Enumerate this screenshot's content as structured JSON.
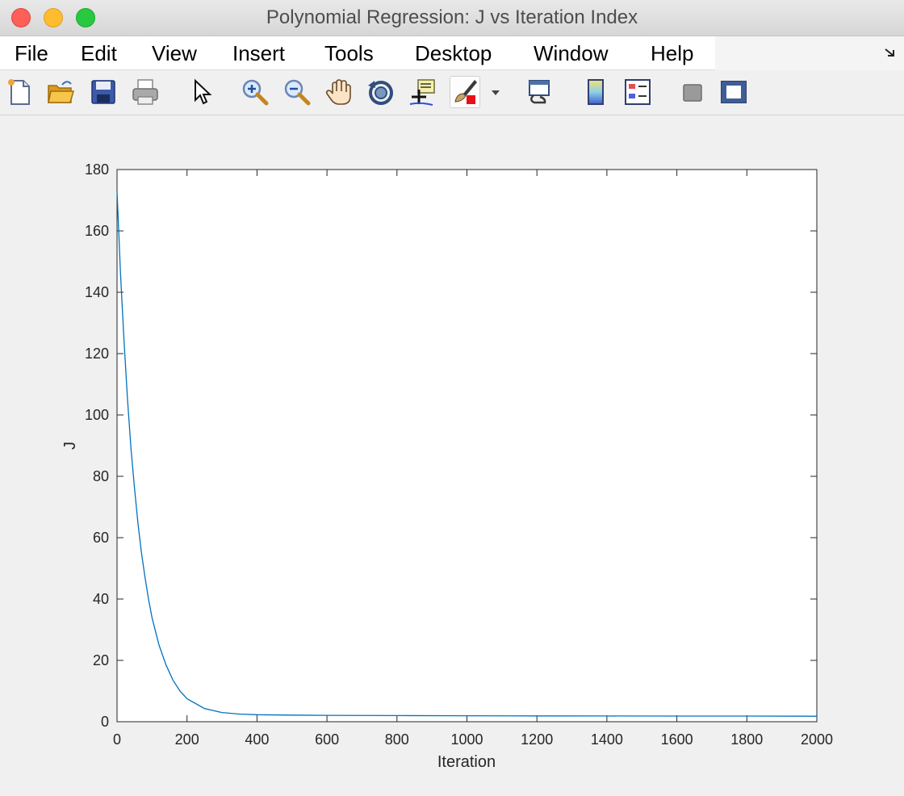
{
  "window": {
    "title": "Polynomial Regression: J vs Iteration Index"
  },
  "menu": {
    "items": [
      "File",
      "Edit",
      "View",
      "Insert",
      "Tools",
      "Desktop",
      "Window",
      "Help"
    ]
  },
  "toolbar": {
    "icons": [
      "new-figure-icon",
      "open-file-icon",
      "save-icon",
      "print-icon",
      "pointer-icon",
      "zoom-in-icon",
      "zoom-out-icon",
      "pan-hand-icon",
      "rotate-3d-icon",
      "data-cursor-icon",
      "brush-icon",
      "dropdown-arrow-icon",
      "link-plot-icon",
      "colorbar-icon",
      "legend-icon",
      "hide-plot-tools-icon",
      "show-plot-tools-icon"
    ]
  },
  "colors": {
    "line": "#0072bd",
    "axes_bg": "#ffffff",
    "figure_bg": "#f0f0f0"
  },
  "chart_data": {
    "type": "line",
    "title": "",
    "xlabel": "Iteration",
    "ylabel": "J",
    "xlim": [
      0,
      2000
    ],
    "ylim": [
      0,
      180
    ],
    "xticks": [
      0,
      200,
      400,
      600,
      800,
      1000,
      1200,
      1400,
      1600,
      1800,
      2000
    ],
    "yticks": [
      0,
      20,
      40,
      60,
      80,
      100,
      120,
      140,
      160,
      180
    ],
    "grid": false,
    "legend": "none",
    "series": [
      {
        "x": [
          0,
          10,
          20,
          30,
          40,
          50,
          60,
          70,
          80,
          90,
          100,
          120,
          140,
          160,
          180,
          200,
          250,
          300,
          350,
          400,
          500,
          600,
          800,
          1000,
          1200,
          1400,
          1600,
          1800,
          2000
        ],
        "y": [
          173,
          146,
          124,
          105,
          89,
          76,
          64.5,
          55,
          47,
          40,
          34,
          25,
          18.5,
          13.5,
          10,
          7.5,
          4.3,
          3.0,
          2.5,
          2.3,
          2.15,
          2.08,
          2.0,
          1.95,
          1.9,
          1.87,
          1.85,
          1.83,
          1.8
        ]
      }
    ]
  }
}
